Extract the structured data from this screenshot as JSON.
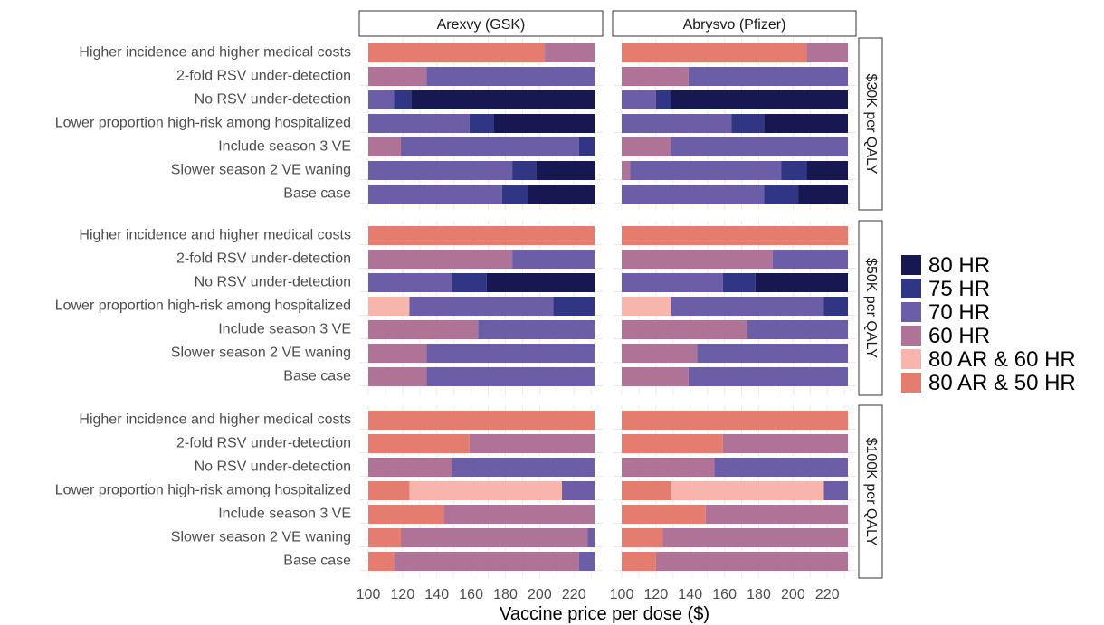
{
  "chart_data": {
    "type": "bar",
    "orientation": "horizontal-stacked",
    "xlabel": "Vaccine price per dose ($)",
    "xlim": [
      100,
      232
    ],
    "xticks": [
      100,
      120,
      140,
      160,
      180,
      200,
      220
    ],
    "categories": [
      "Higher incidence and higher medical costs",
      "2-fold RSV under-detection",
      "No RSV under-detection",
      "Lower proportion high-risk among hospitalized",
      "Include season 3 VE",
      "Slower season 2 VE waning",
      "Base case"
    ],
    "columns": [
      "Arexvy (GSK)",
      "Abrysvo (Pfizer)"
    ],
    "rows": [
      "$30K per QALY",
      "$50K per QALY",
      "$100K per QALY"
    ],
    "legend": {
      "position": "right",
      "items": [
        {
          "key": "80HR",
          "label": "80 HR",
          "color": "#171752"
        },
        {
          "key": "75HR",
          "label": "75 HR",
          "color": "#313684"
        },
        {
          "key": "70HR",
          "label": "70 HR",
          "color": "#6b5ea6"
        },
        {
          "key": "60HR",
          "label": "60 HR",
          "color": "#b07398"
        },
        {
          "key": "80AR60HR",
          "label": "80 AR & 60 HR",
          "color": "#f7b5ae"
        },
        {
          "key": "80AR50HR",
          "label": "80 AR & 50 HR",
          "color": "#e47d70"
        }
      ]
    },
    "panels": [
      {
        "row": 0,
        "col": 0,
        "bars": [
          [
            [
              "80AR50HR",
              100,
              203
            ],
            [
              "60HR",
              203,
              232
            ]
          ],
          [
            [
              "60HR",
              100,
              134
            ],
            [
              "70HR",
              134,
              232
            ]
          ],
          [
            [
              "70HR",
              100,
              115
            ],
            [
              "75HR",
              115,
              125
            ],
            [
              "80HR",
              125,
              232
            ]
          ],
          [
            [
              "70HR",
              100,
              159
            ],
            [
              "75HR",
              159,
              173
            ],
            [
              "80HR",
              173,
              232
            ]
          ],
          [
            [
              "60HR",
              100,
              119
            ],
            [
              "70HR",
              119,
              223
            ],
            [
              "75HR",
              223,
              232
            ]
          ],
          [
            [
              "70HR",
              100,
              184
            ],
            [
              "75HR",
              184,
              198
            ],
            [
              "80HR",
              198,
              232
            ]
          ],
          [
            [
              "70HR",
              100,
              178
            ],
            [
              "75HR",
              178,
              193
            ],
            [
              "80HR",
              193,
              232
            ]
          ]
        ]
      },
      {
        "row": 0,
        "col": 1,
        "bars": [
          [
            [
              "80AR50HR",
              100,
              208
            ],
            [
              "60HR",
              208,
              232
            ]
          ],
          [
            [
              "60HR",
              100,
              139
            ],
            [
              "70HR",
              139,
              232
            ]
          ],
          [
            [
              "70HR",
              100,
              120
            ],
            [
              "75HR",
              120,
              129
            ],
            [
              "80HR",
              129,
              232
            ]
          ],
          [
            [
              "70HR",
              100,
              164
            ],
            [
              "75HR",
              164,
              183
            ],
            [
              "80HR",
              183,
              232
            ]
          ],
          [
            [
              "60HR",
              100,
              129
            ],
            [
              "70HR",
              129,
              232
            ]
          ],
          [
            [
              "60HR",
              100,
              105
            ],
            [
              "70HR",
              105,
              193
            ],
            [
              "75HR",
              193,
              208
            ],
            [
              "80HR",
              208,
              232
            ]
          ],
          [
            [
              "70HR",
              100,
              183
            ],
            [
              "75HR",
              183,
              203
            ],
            [
              "80HR",
              203,
              232
            ]
          ]
        ]
      },
      {
        "row": 1,
        "col": 0,
        "bars": [
          [
            [
              "80AR50HR",
              100,
              232
            ]
          ],
          [
            [
              "60HR",
              100,
              184
            ],
            [
              "70HR",
              184,
              232
            ]
          ],
          [
            [
              "70HR",
              100,
              149
            ],
            [
              "75HR",
              149,
              169
            ],
            [
              "80HR",
              169,
              232
            ]
          ],
          [
            [
              "80AR60HR",
              100,
              124
            ],
            [
              "70HR",
              124,
              208
            ],
            [
              "75HR",
              208,
              232
            ]
          ],
          [
            [
              "60HR",
              100,
              164
            ],
            [
              "70HR",
              164,
              232
            ]
          ],
          [
            [
              "60HR",
              100,
              134
            ],
            [
              "70HR",
              134,
              232
            ]
          ],
          [
            [
              "60HR",
              100,
              134
            ],
            [
              "70HR",
              134,
              232
            ]
          ]
        ]
      },
      {
        "row": 1,
        "col": 1,
        "bars": [
          [
            [
              "80AR50HR",
              100,
              232
            ]
          ],
          [
            [
              "60HR",
              100,
              188
            ],
            [
              "70HR",
              188,
              232
            ]
          ],
          [
            [
              "70HR",
              100,
              159
            ],
            [
              "75HR",
              159,
              178
            ],
            [
              "80HR",
              178,
              232
            ]
          ],
          [
            [
              "80AR60HR",
              100,
              129
            ],
            [
              "70HR",
              129,
              218
            ],
            [
              "75HR",
              218,
              232
            ]
          ],
          [
            [
              "60HR",
              100,
              173
            ],
            [
              "70HR",
              173,
              232
            ]
          ],
          [
            [
              "60HR",
              100,
              144
            ],
            [
              "70HR",
              144,
              232
            ]
          ],
          [
            [
              "60HR",
              100,
              139
            ],
            [
              "70HR",
              139,
              232
            ]
          ]
        ]
      },
      {
        "row": 2,
        "col": 0,
        "bars": [
          [
            [
              "80AR50HR",
              100,
              232
            ]
          ],
          [
            [
              "80AR50HR",
              100,
              159
            ],
            [
              "60HR",
              159,
              232
            ]
          ],
          [
            [
              "60HR",
              100,
              149
            ],
            [
              "70HR",
              149,
              232
            ]
          ],
          [
            [
              "80AR50HR",
              100,
              124
            ],
            [
              "80AR60HR",
              124,
              213
            ],
            [
              "70HR",
              213,
              232
            ]
          ],
          [
            [
              "80AR50HR",
              100,
              144
            ],
            [
              "60HR",
              144,
              232
            ]
          ],
          [
            [
              "80AR50HR",
              100,
              119
            ],
            [
              "60HR",
              119,
              228
            ],
            [
              "70HR",
              228,
              232
            ]
          ],
          [
            [
              "80AR50HR",
              100,
              115
            ],
            [
              "60HR",
              115,
              223
            ],
            [
              "70HR",
              223,
              232
            ]
          ]
        ]
      },
      {
        "row": 2,
        "col": 1,
        "bars": [
          [
            [
              "80AR50HR",
              100,
              232
            ]
          ],
          [
            [
              "80AR50HR",
              100,
              159
            ],
            [
              "60HR",
              159,
              232
            ]
          ],
          [
            [
              "60HR",
              100,
              154
            ],
            [
              "70HR",
              154,
              232
            ]
          ],
          [
            [
              "80AR50HR",
              100,
              129
            ],
            [
              "80AR60HR",
              129,
              218
            ],
            [
              "70HR",
              218,
              232
            ]
          ],
          [
            [
              "80AR50HR",
              100,
              149
            ],
            [
              "60HR",
              149,
              232
            ]
          ],
          [
            [
              "80AR50HR",
              100,
              124
            ],
            [
              "60HR",
              124,
              232
            ]
          ],
          [
            [
              "80AR50HR",
              100,
              120
            ],
            [
              "60HR",
              120,
              232
            ]
          ]
        ]
      }
    ],
    "grid": true
  }
}
